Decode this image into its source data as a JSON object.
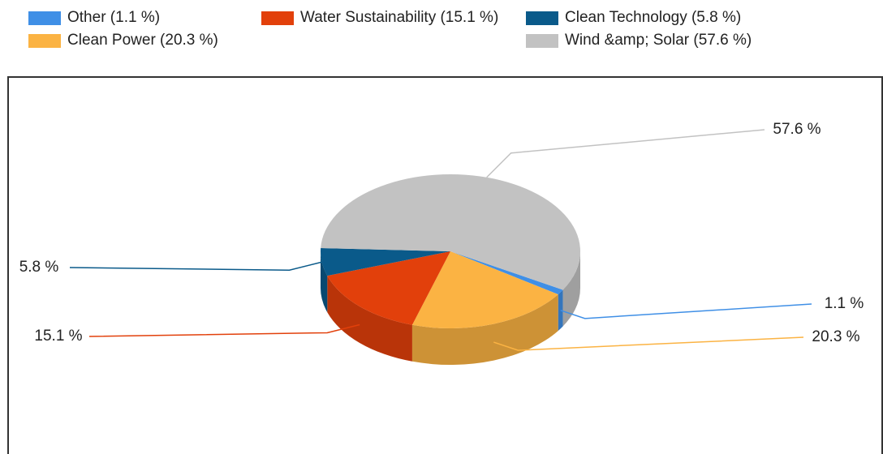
{
  "chart_data": {
    "type": "pie",
    "categories": [
      "Other (1.1 %)",
      "Clean Power (20.3 %)",
      "Water Sustainability (15.1 %)",
      "Clean Technology (5.8 %)",
      "Wind &amp; Solar (57.6 %)"
    ],
    "values": [
      1.1,
      20.3,
      15.1,
      5.8,
      57.6
    ],
    "value_labels": [
      "1.1 %",
      "20.3 %",
      "15.1 %",
      "5.8 %",
      "57.6 %"
    ],
    "colors": [
      "#3f8fe6",
      "#fbb343",
      "#e2400b",
      "#0a5a8a",
      "#c2c2c2"
    ]
  }
}
